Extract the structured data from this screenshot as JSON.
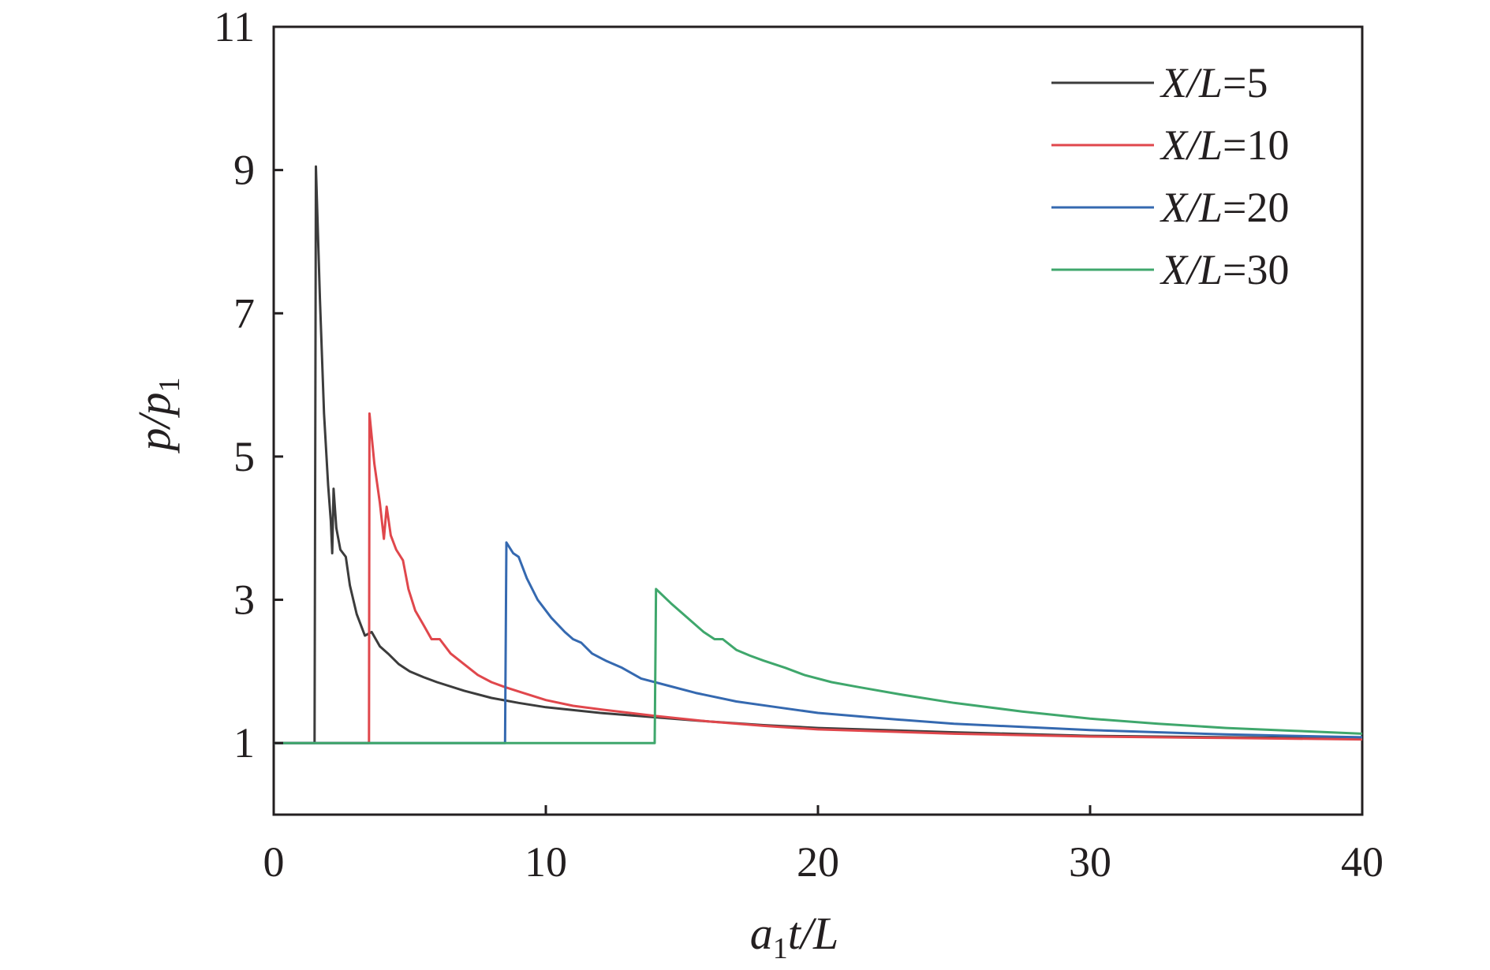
{
  "chart_data": {
    "type": "line",
    "xlabel": {
      "pre": "a",
      "sub": "1",
      "post": "t/L"
    },
    "ylabel": {
      "pre": "p/p",
      "sub": "1"
    },
    "xlim": [
      0,
      40
    ],
    "ylim": [
      0,
      11
    ],
    "x_ticks": [
      0,
      10,
      20,
      30,
      40
    ],
    "y_ticks": [
      1,
      3,
      5,
      7,
      9,
      11
    ],
    "grid": false,
    "legend_position": "top-right",
    "series": [
      {
        "name": "X/L=5",
        "legend": {
          "var": "X/L",
          "val": "=5"
        },
        "color": "#3c3c3c",
        "points": [
          [
            0,
            1
          ],
          [
            1.5,
            1
          ],
          [
            1.5,
            1
          ],
          [
            1.55,
            9.05
          ],
          [
            1.7,
            7.2
          ],
          [
            1.85,
            5.6
          ],
          [
            2.0,
            4.6
          ],
          [
            2.1,
            4.1
          ],
          [
            2.15,
            3.65
          ],
          [
            2.2,
            4.55
          ],
          [
            2.3,
            4.0
          ],
          [
            2.45,
            3.7
          ],
          [
            2.65,
            3.6
          ],
          [
            2.8,
            3.2
          ],
          [
            3.05,
            2.8
          ],
          [
            3.35,
            2.5
          ],
          [
            3.6,
            2.55
          ],
          [
            3.9,
            2.35
          ],
          [
            4.2,
            2.25
          ],
          [
            4.6,
            2.1
          ],
          [
            5.0,
            2.0
          ],
          [
            5.5,
            1.92
          ],
          [
            6.0,
            1.85
          ],
          [
            7.0,
            1.73
          ],
          [
            8.0,
            1.63
          ],
          [
            9.0,
            1.56
          ],
          [
            10.0,
            1.5
          ],
          [
            12.0,
            1.42
          ],
          [
            14.0,
            1.36
          ],
          [
            16.0,
            1.3
          ],
          [
            18.0,
            1.25
          ],
          [
            20.0,
            1.21
          ],
          [
            25.0,
            1.15
          ],
          [
            30.0,
            1.1
          ],
          [
            35.0,
            1.08
          ],
          [
            40.0,
            1.06
          ]
        ]
      },
      {
        "name": "X/L=10",
        "legend": {
          "var": "X/L",
          "val": "=10"
        },
        "color": "#e0474c",
        "points": [
          [
            0,
            1
          ],
          [
            3.5,
            1
          ],
          [
            3.5,
            1
          ],
          [
            3.52,
            5.6
          ],
          [
            3.7,
            4.9
          ],
          [
            3.9,
            4.35
          ],
          [
            4.05,
            3.85
          ],
          [
            4.15,
            4.3
          ],
          [
            4.3,
            3.9
          ],
          [
            4.5,
            3.7
          ],
          [
            4.75,
            3.55
          ],
          [
            4.95,
            3.15
          ],
          [
            5.2,
            2.85
          ],
          [
            5.5,
            2.65
          ],
          [
            5.8,
            2.45
          ],
          [
            6.1,
            2.45
          ],
          [
            6.5,
            2.25
          ],
          [
            7.0,
            2.1
          ],
          [
            7.5,
            1.95
          ],
          [
            8.0,
            1.85
          ],
          [
            8.5,
            1.78
          ],
          [
            9.0,
            1.72
          ],
          [
            10.0,
            1.6
          ],
          [
            11.0,
            1.52
          ],
          [
            12.0,
            1.47
          ],
          [
            14.0,
            1.38
          ],
          [
            16.0,
            1.3
          ],
          [
            18.0,
            1.24
          ],
          [
            20.0,
            1.19
          ],
          [
            25.0,
            1.13
          ],
          [
            30.0,
            1.09
          ],
          [
            35.0,
            1.07
          ],
          [
            40.0,
            1.05
          ]
        ]
      },
      {
        "name": "X/L=20",
        "legend": {
          "var": "X/L",
          "val": "=20"
        },
        "color": "#3569b0",
        "points": [
          [
            0,
            1
          ],
          [
            8.5,
            1
          ],
          [
            8.5,
            1
          ],
          [
            8.55,
            3.8
          ],
          [
            8.8,
            3.65
          ],
          [
            9.0,
            3.6
          ],
          [
            9.3,
            3.3
          ],
          [
            9.7,
            3.0
          ],
          [
            10.2,
            2.75
          ],
          [
            10.7,
            2.55
          ],
          [
            11.0,
            2.45
          ],
          [
            11.3,
            2.4
          ],
          [
            11.7,
            2.25
          ],
          [
            12.2,
            2.15
          ],
          [
            12.8,
            2.05
          ],
          [
            13.5,
            1.9
          ],
          [
            14.5,
            1.8
          ],
          [
            15.5,
            1.7
          ],
          [
            17.0,
            1.58
          ],
          [
            18.5,
            1.5
          ],
          [
            20.0,
            1.42
          ],
          [
            22.5,
            1.34
          ],
          [
            25.0,
            1.27
          ],
          [
            30.0,
            1.18
          ],
          [
            35.0,
            1.12
          ],
          [
            40.0,
            1.08
          ]
        ]
      },
      {
        "name": "X/L=30",
        "legend": {
          "var": "X/L",
          "val": "=30"
        },
        "color": "#3fa76c",
        "points": [
          [
            0,
            1
          ],
          [
            14.0,
            1
          ],
          [
            14.0,
            1
          ],
          [
            14.05,
            3.15
          ],
          [
            14.6,
            2.95
          ],
          [
            15.2,
            2.75
          ],
          [
            15.8,
            2.55
          ],
          [
            16.2,
            2.45
          ],
          [
            16.5,
            2.45
          ],
          [
            17.0,
            2.3
          ],
          [
            17.5,
            2.22
          ],
          [
            18.0,
            2.15
          ],
          [
            18.8,
            2.05
          ],
          [
            19.5,
            1.95
          ],
          [
            20.5,
            1.85
          ],
          [
            21.5,
            1.78
          ],
          [
            23.0,
            1.68
          ],
          [
            25.0,
            1.56
          ],
          [
            27.5,
            1.44
          ],
          [
            30.0,
            1.34
          ],
          [
            32.5,
            1.27
          ],
          [
            35.0,
            1.21
          ],
          [
            37.5,
            1.17
          ],
          [
            40.0,
            1.13
          ]
        ]
      }
    ]
  }
}
